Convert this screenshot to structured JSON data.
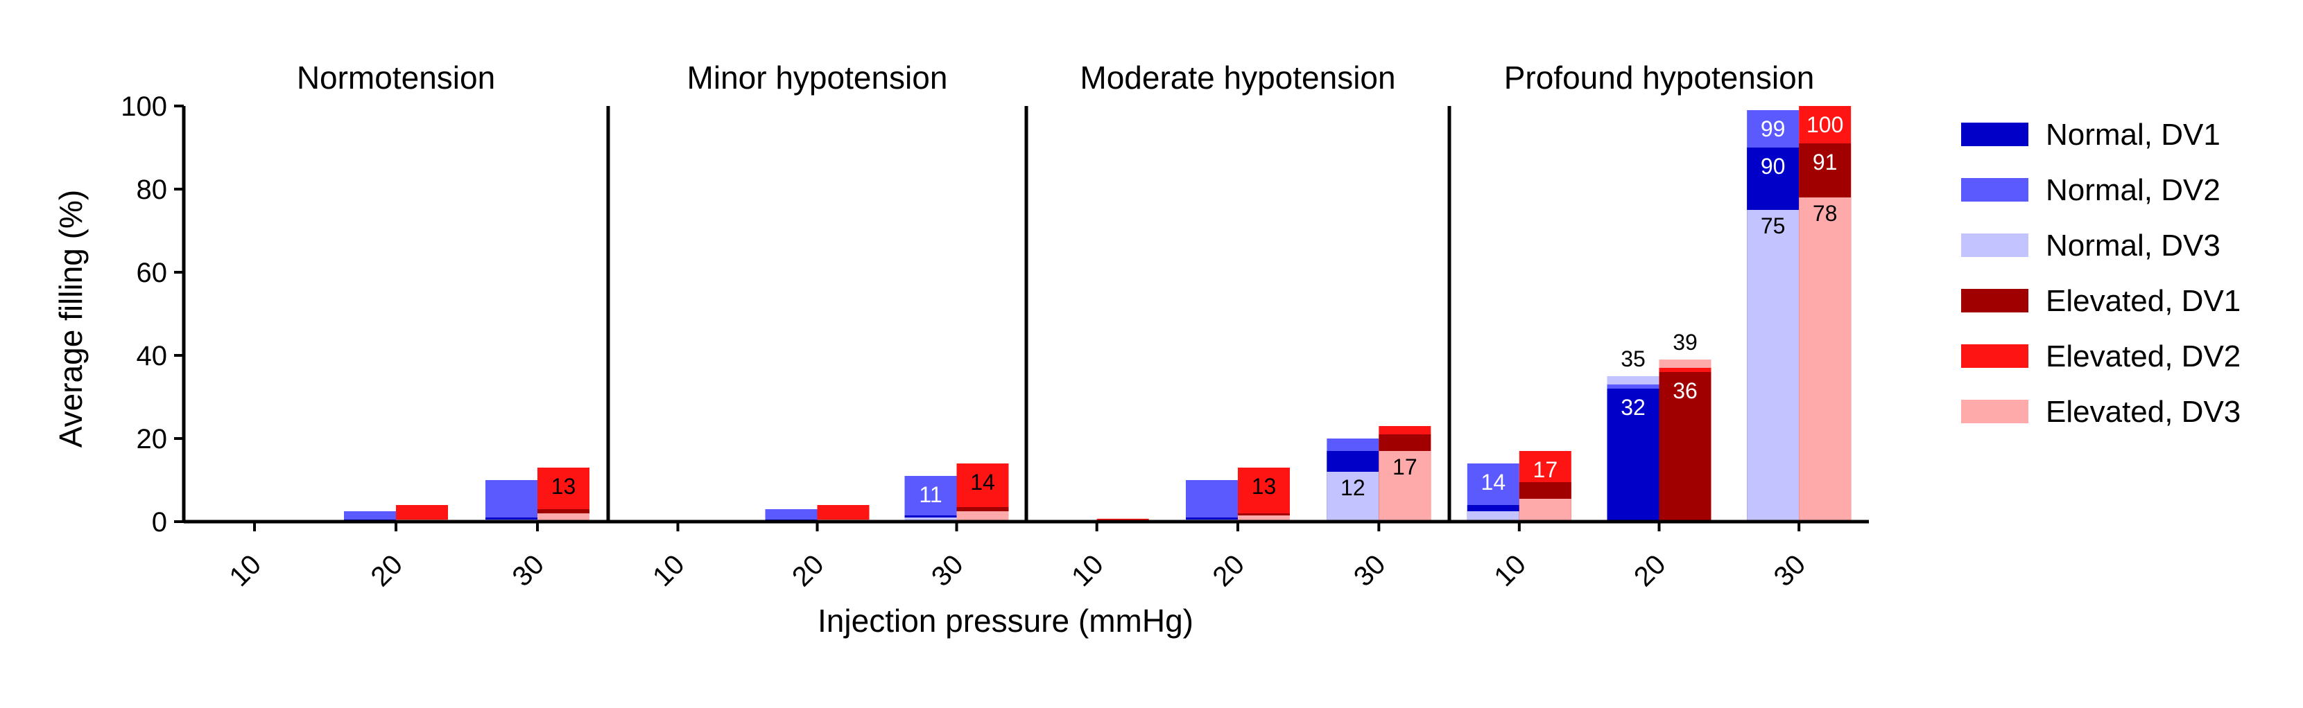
{
  "chart_data": {
    "type": "bar",
    "layout": "stacked bars, four panels",
    "ylabel": "Average filling (%)",
    "xlabel": "Injection pressure (mmHg)",
    "ylim": [
      0,
      100
    ],
    "yticks": [
      0,
      20,
      40,
      60,
      80,
      100
    ],
    "categories": [
      "10",
      "20",
      "30"
    ],
    "grid": false,
    "legend_position": "right",
    "panels": [
      {
        "title": "Normotension",
        "normal": {
          "DV1": [
            0,
            0.5,
            1
          ],
          "DV2": [
            0,
            2.5,
            10
          ],
          "DV3": [
            0,
            0.2,
            0.5
          ]
        },
        "elevated": {
          "DV1": [
            0,
            0.5,
            3
          ],
          "DV2": [
            0,
            4,
            13
          ],
          "DV3": [
            0,
            0.5,
            2
          ]
        },
        "labels": [
          {
            "cat": 2,
            "group": "elevated",
            "series": "DV2",
            "text": "13"
          }
        ]
      },
      {
        "title": "Minor hypotension",
        "normal": {
          "DV1": [
            0,
            0.5,
            1.5
          ],
          "DV2": [
            0,
            3,
            11
          ],
          "DV3": [
            0,
            0.3,
            1
          ]
        },
        "elevated": {
          "DV1": [
            0,
            0.5,
            3.5
          ],
          "DV2": [
            0,
            4,
            14
          ],
          "DV3": [
            0,
            0.5,
            2.5
          ]
        },
        "labels": [
          {
            "cat": 2,
            "group": "normal",
            "series": "DV2",
            "text": "11"
          },
          {
            "cat": 2,
            "group": "elevated",
            "series": "DV2",
            "text": "14"
          }
        ]
      },
      {
        "title": "Moderate hypotension",
        "normal": {
          "DV1": [
            0,
            1,
            17
          ],
          "DV2": [
            0,
            10,
            20
          ],
          "DV3": [
            0,
            0.5,
            12
          ]
        },
        "elevated": {
          "DV1": [
            0.3,
            2,
            21
          ],
          "DV2": [
            0.7,
            13,
            23
          ],
          "DV3": [
            0,
            1.5,
            17
          ]
        },
        "labels": [
          {
            "cat": 1,
            "group": "elevated",
            "series": "DV2",
            "text": "13"
          },
          {
            "cat": 2,
            "group": "normal",
            "series": "DV3",
            "text": "12"
          },
          {
            "cat": 2,
            "group": "elevated",
            "series": "DV3",
            "text": "17"
          }
        ]
      },
      {
        "title": "Profound hypotension",
        "normal": {
          "DV1": [
            4,
            32,
            90
          ],
          "DV2": [
            14,
            33,
            99
          ],
          "DV3": [
            2.5,
            35,
            75
          ]
        },
        "elevated": {
          "DV1": [
            9.5,
            36,
            91
          ],
          "DV2": [
            17,
            37,
            100
          ],
          "DV3": [
            5.5,
            39,
            78
          ]
        },
        "labels": [
          {
            "cat": 0,
            "group": "normal",
            "series": "DV2",
            "text": "14"
          },
          {
            "cat": 0,
            "group": "elevated",
            "series": "DV2",
            "text": "17"
          },
          {
            "cat": 1,
            "group": "normal",
            "series": "DV1",
            "text": "32"
          },
          {
            "cat": 1,
            "group": "normal",
            "series": "DV3",
            "text": "35"
          },
          {
            "cat": 1,
            "group": "elevated",
            "series": "DV1",
            "text": "36"
          },
          {
            "cat": 1,
            "group": "elevated",
            "series": "DV3",
            "text": "39"
          },
          {
            "cat": 2,
            "group": "normal",
            "series": "DV1",
            "text": "90"
          },
          {
            "cat": 2,
            "group": "normal",
            "series": "DV2",
            "text": "99"
          },
          {
            "cat": 2,
            "group": "normal",
            "series": "DV3",
            "text": "75"
          },
          {
            "cat": 2,
            "group": "elevated",
            "series": "DV1",
            "text": "91"
          },
          {
            "cat": 2,
            "group": "elevated",
            "series": "DV2",
            "text": "100"
          },
          {
            "cat": 2,
            "group": "elevated",
            "series": "DV3",
            "text": "78"
          }
        ]
      }
    ],
    "series": [
      {
        "name": "Normal, DV1",
        "group": "normal",
        "key": "DV1",
        "color": "#0000c8"
      },
      {
        "name": "Normal, DV2",
        "group": "normal",
        "key": "DV2",
        "color": "#5a5aff"
      },
      {
        "name": "Normal, DV3",
        "group": "normal",
        "key": "DV3",
        "color": "#c3c3ff"
      },
      {
        "name": "Elevated, DV1",
        "group": "elevated",
        "key": "DV1",
        "color": "#a00000"
      },
      {
        "name": "Elevated, DV2",
        "group": "elevated",
        "key": "DV2",
        "color": "#ff1414"
      },
      {
        "name": "Elevated, DV3",
        "group": "elevated",
        "key": "DV3",
        "color": "#ffaaaa"
      }
    ]
  }
}
